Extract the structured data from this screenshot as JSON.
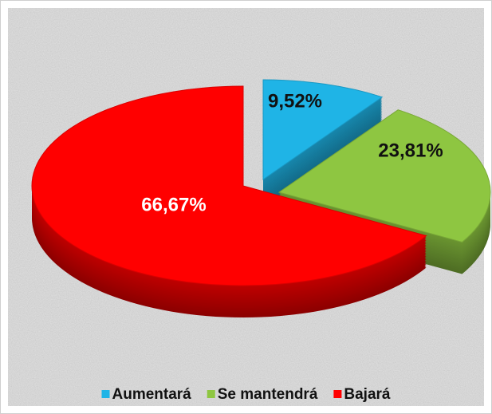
{
  "chart_data": {
    "type": "pie",
    "categories": [
      "Aumentará",
      "Se mantendrá",
      "Bajará"
    ],
    "values": [
      9.52,
      23.81,
      66.67
    ],
    "value_labels": [
      "9,52%",
      "23,81%",
      "66,67%"
    ],
    "colors": [
      "#1fb4e6",
      "#8ec641",
      "#ff0000"
    ],
    "legend": "bottom"
  }
}
